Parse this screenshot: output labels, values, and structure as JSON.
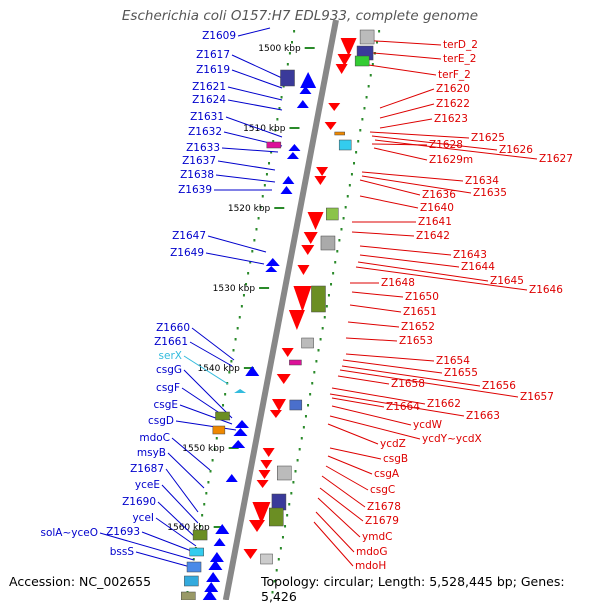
{
  "title": "Escherichia coli O157:H7 EDL933, complete genome",
  "accession": "Accession: NC_002655",
  "topology": "Topology: circular; Length: 5,528,445 bp; Genes: 5,426",
  "colors": {
    "backbone": "#888888",
    "forward_label": "#0000cc",
    "reverse_label": "#dd0000",
    "rna_label": "#33bbdd",
    "forward_feature": "#0000ff",
    "reverse_feature": "#ff0000",
    "tick": "#2a8a2a"
  },
  "kbp_marks": [
    "1500 kbp",
    "1510 kbp",
    "1520 kbp",
    "1530 kbp",
    "1540 kbp",
    "1550 kbp",
    "1560 kbp"
  ],
  "forward_labels": [
    "Z1609",
    "Z1617",
    "Z1619",
    "Z1621",
    "Z1624",
    "Z1631",
    "Z1632",
    "Z1633",
    "Z1637",
    "Z1638",
    "Z1639",
    "Z1647",
    "Z1649",
    "Z1660",
    "Z1661",
    "serX",
    "csgG",
    "csgF",
    "csgE",
    "csgD",
    "mdoC",
    "msyB",
    "Z1687",
    "yceE",
    "Z1690",
    "yceI",
    "Z1693",
    "solA~yceO",
    "bssS"
  ],
  "reverse_labels": [
    "terD_2",
    "terE_2",
    "terF_2",
    "Z1620",
    "Z1622",
    "Z1623",
    "Z1625",
    "Z1626",
    "Z1627",
    "Z1628",
    "Z1629m",
    "Z1634",
    "Z1635",
    "Z1636",
    "Z1640",
    "Z1641",
    "Z1642",
    "Z1643",
    "Z1644",
    "Z1645",
    "Z1646",
    "Z1648",
    "Z1650",
    "Z1651",
    "Z1652",
    "Z1653",
    "Z1654",
    "Z1655",
    "Z1656",
    "Z1657",
    "Z1658",
    "Z1662",
    "Z1663",
    "Z1664",
    "ycdW",
    "ycdY~ycdX",
    "ycdZ",
    "csgB",
    "csgA",
    "csgC",
    "Z1678",
    "Z1679",
    "ymdC",
    "mdoG",
    "mdoH"
  ]
}
